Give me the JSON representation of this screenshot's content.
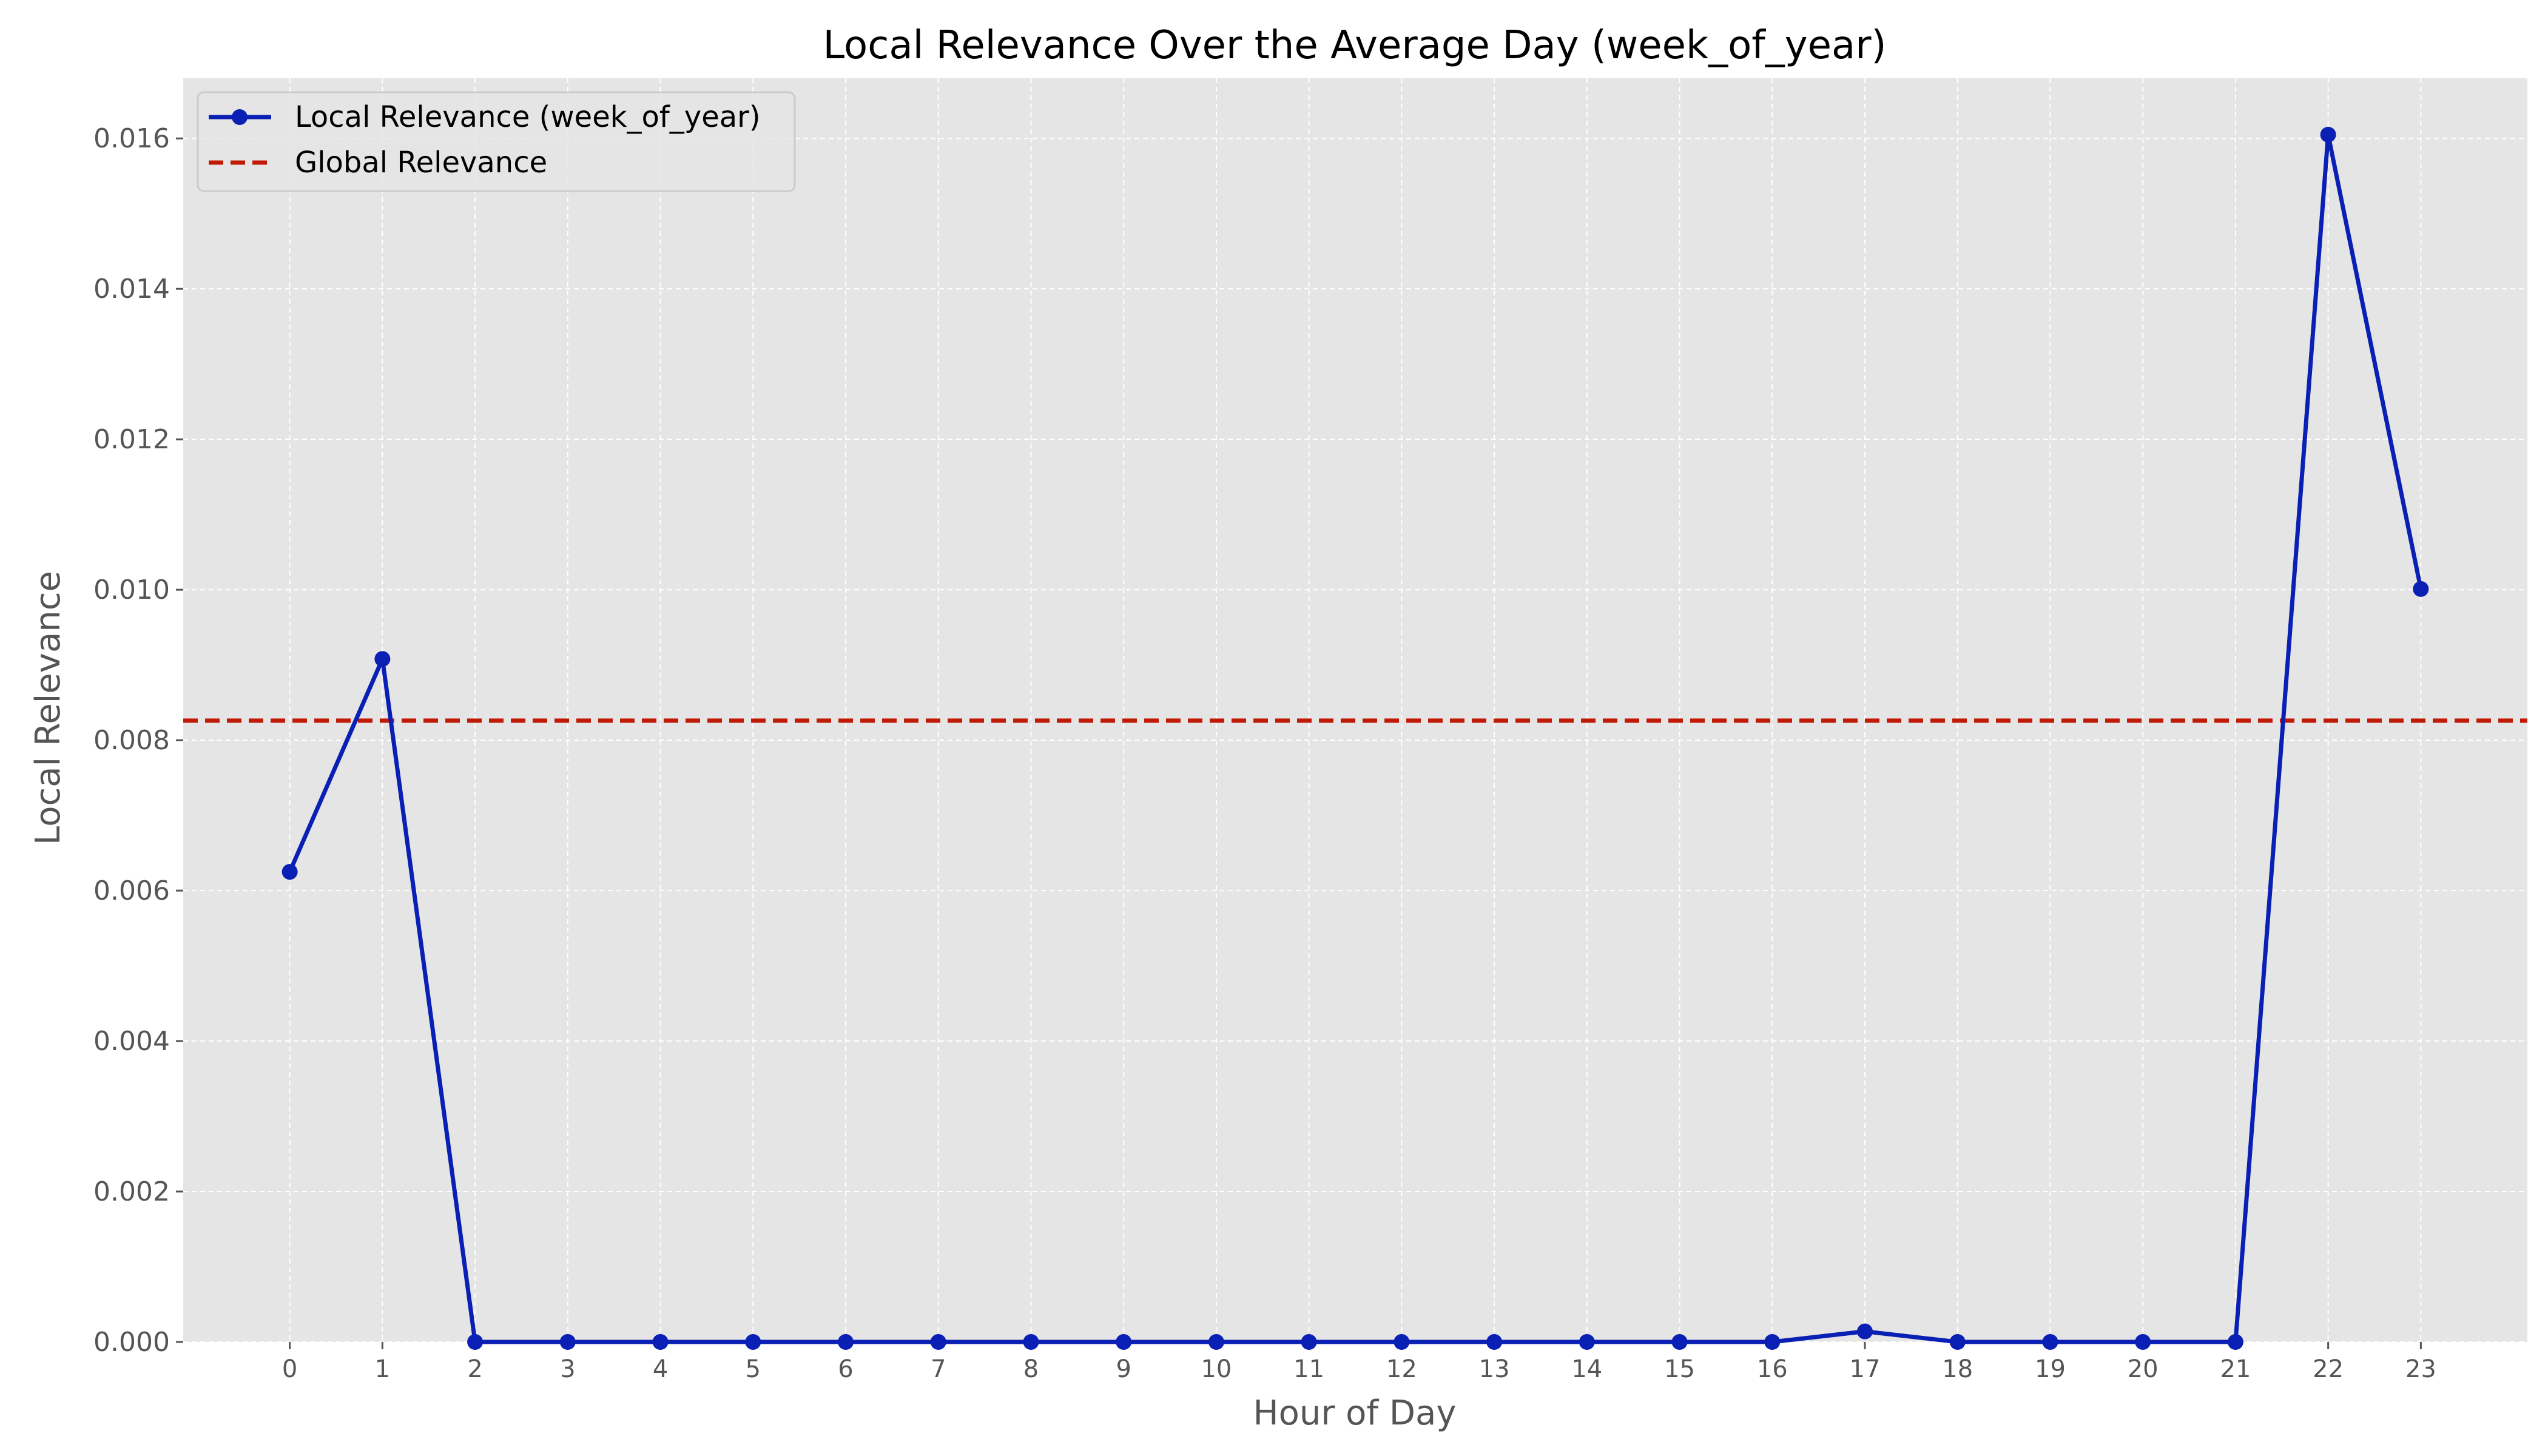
{
  "chart_data": {
    "type": "line",
    "title": "Local Relevance Over the Average Day (week_of_year)",
    "xlabel": "Hour of Day",
    "ylabel": "Local Relevance",
    "x": [
      0,
      1,
      2,
      3,
      4,
      5,
      6,
      7,
      8,
      9,
      10,
      11,
      12,
      13,
      14,
      15,
      16,
      17,
      18,
      19,
      20,
      21,
      22,
      23
    ],
    "x_tick_labels": [
      "0",
      "1",
      "2",
      "3",
      "4",
      "5",
      "6",
      "7",
      "8",
      "9",
      "10",
      "11",
      "12",
      "13",
      "14",
      "15",
      "16",
      "17",
      "18",
      "19",
      "20",
      "21",
      "22",
      "23"
    ],
    "xlim": [
      -1.15,
      24.15
    ],
    "ylim": [
      0,
      0.0168
    ],
    "y_ticks": [
      0,
      0.002,
      0.004,
      0.006,
      0.008,
      0.01,
      0.012,
      0.014,
      0.016
    ],
    "y_tick_labels": [
      "0.000",
      "0.002",
      "0.004",
      "0.006",
      "0.008",
      "0.010",
      "0.012",
      "0.014",
      "0.016"
    ],
    "grid": true,
    "legend_position": "top-left",
    "series": [
      {
        "name": "Local Relevance (week_of_year)",
        "style": "solid line with circle markers",
        "color": "#0a1fb4",
        "values": [
          0.00625,
          0.00908,
          0,
          0,
          0,
          0,
          0,
          0,
          0,
          0,
          0,
          0,
          0,
          0,
          0,
          0,
          0,
          0.00014,
          0,
          0,
          0,
          0,
          0.01605,
          0.01001
        ]
      },
      {
        "name": "Global Relevance",
        "style": "dashed horizontal line",
        "color": "#c01a05",
        "value": 0.00826
      }
    ]
  }
}
